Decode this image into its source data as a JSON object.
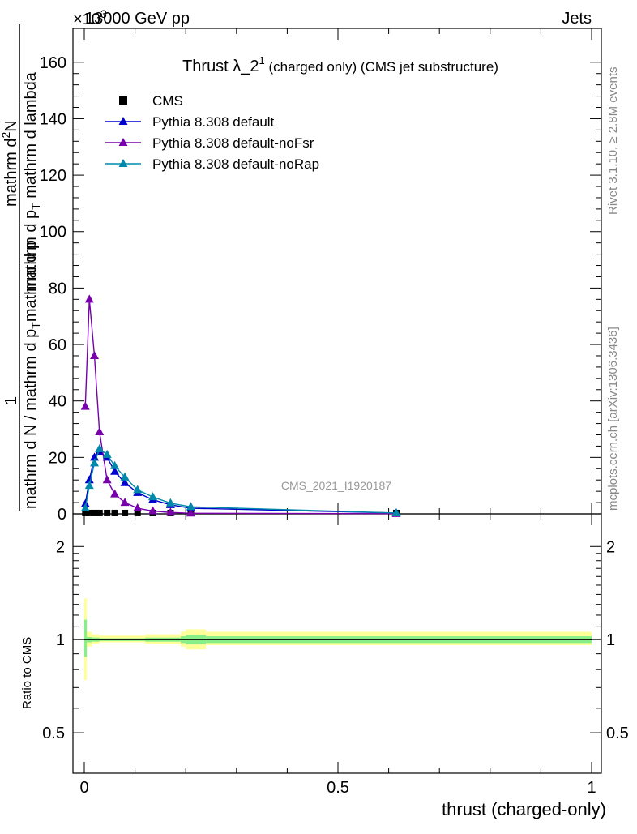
{
  "header": {
    "exponent_label": "×10",
    "exponent_power": "3",
    "energy_label": "13000 GeV pp",
    "process_label": "Jets"
  },
  "side_labels": {
    "rivet": "Rivet 3.1.10, ≥ 2.8M events",
    "mcplots": "mcplots.cern.ch [arXiv:1306.3436]"
  },
  "upper_ylabel": {
    "one": "1",
    "bottom": "mathrm d N / mathrm d p",
    "bottom_sub": "T",
    "bottom_tail": "mathrm d p",
    "top": "mathrm d",
    "top_sup": "2",
    "top_tail": "N",
    "den": "mathrm d p",
    "den_sub": "T",
    "den_tail": " mathrm d lambda"
  },
  "lower_ylabel": "Ratio to CMS",
  "xlabel": "thrust (charged-only)",
  "watermark": "CMS_2021_I1920187",
  "chart_data": [
    {
      "type": "line",
      "title_main": "Thrust λ_2",
      "title_sup": "1",
      "title_rest": " (charged only) (CMS jet substructure)",
      "xlim": [
        0,
        1
      ],
      "ylim": [
        0,
        172
      ],
      "y_unit_note": "×10^3",
      "yticks": [
        0,
        20,
        40,
        60,
        80,
        100,
        120,
        140,
        160
      ],
      "xticks": [
        0,
        0.5,
        1
      ],
      "legend_position": "top-left",
      "series": [
        {
          "name": "CMS",
          "color": "#000000",
          "marker": "square",
          "x": [
            0.002,
            0.01,
            0.02,
            0.03,
            0.045,
            0.06,
            0.08,
            0.105,
            0.135,
            0.17,
            0.21,
            0.615
          ],
          "y": [
            0.3,
            0.3,
            0.3,
            0.3,
            0.3,
            0.3,
            0.3,
            0.3,
            0.3,
            0.3,
            0.3,
            0.3
          ]
        },
        {
          "name": "Pythia 8.308 default",
          "color": "#0000cc",
          "marker": "triangle",
          "x": [
            0.002,
            0.01,
            0.02,
            0.03,
            0.045,
            0.06,
            0.08,
            0.105,
            0.135,
            0.17,
            0.21,
            0.615
          ],
          "y": [
            3.5,
            12,
            20,
            22,
            20,
            15,
            11,
            7.5,
            5,
            3.2,
            2,
            0.3
          ]
        },
        {
          "name": "Pythia 8.308 default-noFsr",
          "color": "#7700aa",
          "marker": "triangle",
          "x": [
            0.002,
            0.01,
            0.02,
            0.03,
            0.045,
            0.06,
            0.08,
            0.105,
            0.135,
            0.17,
            0.21,
            0.615
          ],
          "y": [
            38,
            76,
            56,
            29,
            12,
            7,
            4,
            2,
            1,
            0.5,
            0.2,
            0.05
          ]
        },
        {
          "name": "Pythia 8.308 default-noRap",
          "color": "#0088aa",
          "marker": "triangle",
          "x": [
            0.002,
            0.01,
            0.02,
            0.03,
            0.045,
            0.06,
            0.08,
            0.105,
            0.135,
            0.17,
            0.21,
            0.615
          ],
          "y": [
            2,
            10,
            18,
            23,
            21,
            17,
            13,
            8.5,
            6,
            3.8,
            2.5,
            0.3
          ]
        }
      ]
    },
    {
      "type": "line",
      "ylabel": "Ratio to CMS",
      "xlabel": "thrust (charged-only)",
      "xlim": [
        0,
        1
      ],
      "ylim": [
        0.37,
        2.55
      ],
      "log_y": true,
      "yticks": [
        0.5,
        1,
        2
      ],
      "ytick_labels": [
        "0.5",
        "1",
        "2"
      ],
      "xticks": [
        0,
        0.5,
        1
      ],
      "xtick_labels": [
        "0",
        "0.5",
        "1"
      ],
      "reference_line": 1,
      "bands": [
        {
          "color": "#ffff99",
          "x_edges": [
            0,
            0.005,
            0.015,
            0.03,
            0.12,
            0.19,
            0.2,
            0.24,
            1
          ],
          "lo": [
            0.74,
            0.95,
            0.97,
            0.98,
            0.97,
            0.95,
            0.93,
            0.96,
            0.96
          ],
          "hi": [
            1.36,
            1.06,
            1.04,
            1.03,
            1.04,
            1.06,
            1.08,
            1.06,
            1.06
          ]
        },
        {
          "color": "#88ee88",
          "x_edges": [
            0,
            0.005,
            0.015,
            0.03,
            0.12,
            0.19,
            0.2,
            0.24,
            1
          ],
          "lo": [
            0.88,
            0.98,
            0.985,
            0.99,
            0.985,
            0.975,
            0.965,
            0.975,
            0.975
          ],
          "hi": [
            1.16,
            1.02,
            1.015,
            1.01,
            1.015,
            1.025,
            1.035,
            1.025,
            1.025
          ]
        }
      ]
    }
  ]
}
